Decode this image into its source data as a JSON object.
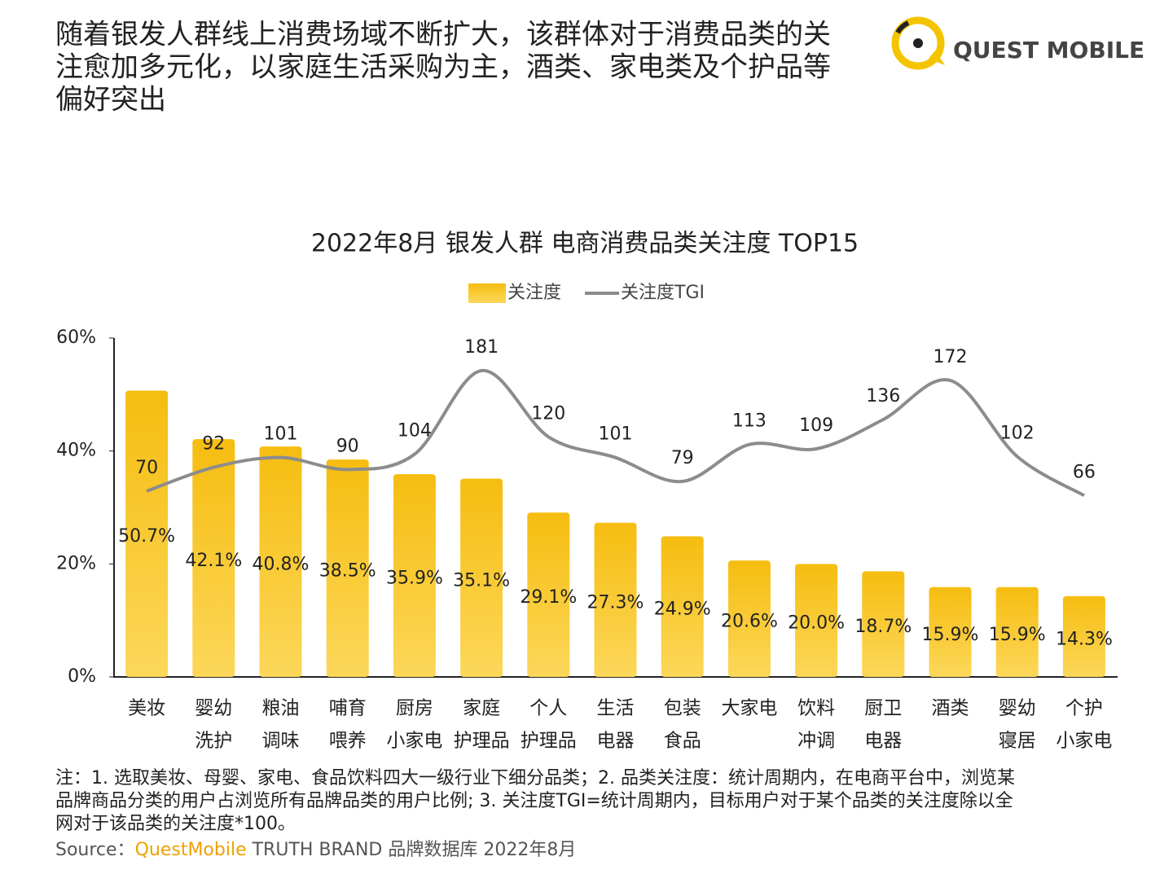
{
  "header": {
    "title": [
      "随着银发人群线上消费场域不断扩大，该群体对于消费品类的关",
      "注愈加多元化，以家庭生活采购为主，酒类、家电类及个护品等",
      "偏好突出"
    ],
    "logo": "QUEST MOBILE"
  },
  "chart_data": {
    "type": "bar_line",
    "title": "2022年8月 银发人群 电商消费品类关注度 TOP15",
    "categories": [
      [
        "美妆"
      ],
      [
        "婴幼",
        "洗护"
      ],
      [
        "粮油",
        "调味"
      ],
      [
        "哺育",
        "喂养"
      ],
      [
        "厨房",
        "小家电"
      ],
      [
        "家庭",
        "护理品"
      ],
      [
        "个人",
        "护理品"
      ],
      [
        "生活",
        "电器"
      ],
      [
        "包装",
        "食品"
      ],
      [
        "大家电"
      ],
      [
        "饮料",
        "冲调"
      ],
      [
        "厨卫",
        "电器"
      ],
      [
        "酒类"
      ],
      [
        "婴幼",
        "寝居"
      ],
      [
        "个护",
        "小家电"
      ]
    ],
    "series": [
      {
        "name": "关注度",
        "color": "#f7bd14",
        "values": [
          50.7,
          42.1,
          40.8,
          38.5,
          35.9,
          35.1,
          29.1,
          27.3,
          24.9,
          20.6,
          20.0,
          18.7,
          15.9,
          15.9,
          14.3
        ],
        "value_labels": [
          "50.7%",
          "42.1%",
          "40.8%",
          "38.5%",
          "35.9%",
          "35.1%",
          "29.1%",
          "27.3%",
          "24.9%",
          "20.6%",
          "20.0%",
          "18.7%",
          "15.9%",
          "15.9%",
          "14.3%"
        ]
      },
      {
        "name": "关注度TGI",
        "color": "#8c8c8c",
        "axis": "y2",
        "values": [
          70,
          92,
          101,
          90,
          104,
          181,
          120,
          101,
          79,
          113,
          109,
          136,
          172,
          102,
          66
        ]
      }
    ],
    "ylim": [
      0,
      60
    ],
    "yticks": [
      {
        "value": 0,
        "label": "0%"
      },
      {
        "value": 20,
        "label": "20%"
      },
      {
        "value": 40,
        "label": "40%"
      },
      {
        "value": 60,
        "label": "60%"
      }
    ],
    "y2lim": [
      -101,
      211
    ],
    "legend": "top"
  },
  "notes": [
    "注：1. 选取美妆、母婴、家电、食品饮料四大一级行业下细分品类；2. 品类关注度：统计周期内，在电商平台中，浏览某",
    "品牌商品分类的用户占浏览所有品牌品类的用户比例; 3. 关注度TGI=统计周期内，目标用户对于某个品类的关注度除以全",
    "网对于该品类的关注度*100。"
  ],
  "source": [
    "Source：",
    "QuestMobile",
    " TRUTH BRAND 品牌数据库 2022年8月"
  ]
}
